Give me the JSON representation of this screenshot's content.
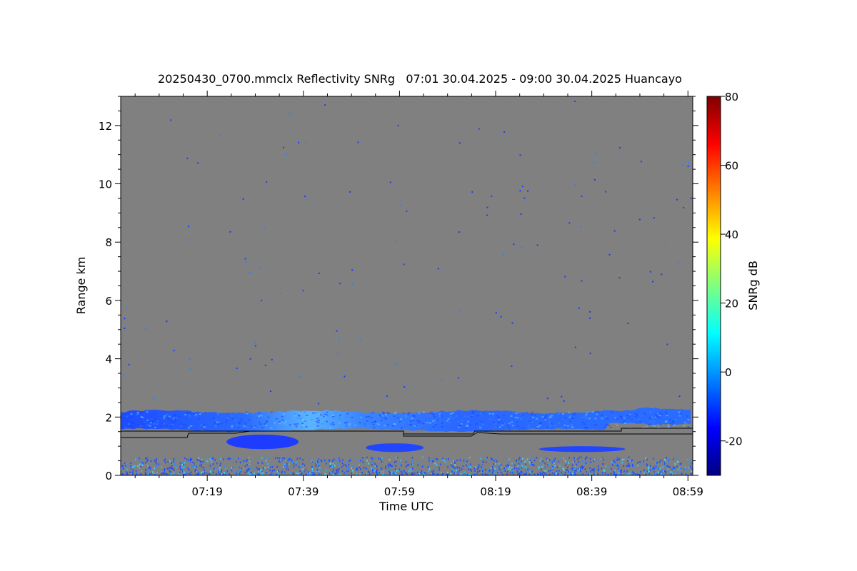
{
  "chart_data": {
    "type": "heatmap",
    "title": "20250430_0700.mmclx Reflectivity SNRg   07:01 30.04.2025 - 09:00 30.04.2025 Huancayo",
    "xlabel": "Time UTC",
    "ylabel": "Range km",
    "x_ticks": [
      "07:19",
      "07:39",
      "07:59",
      "08:19",
      "08:39",
      "08:59"
    ],
    "x_tick_minutes": [
      79,
      99,
      119,
      139,
      159,
      179
    ],
    "xlim_minutes": [
      61,
      180
    ],
    "y_ticks": [
      0,
      2,
      4,
      6,
      8,
      10,
      12
    ],
    "ylim": [
      0,
      13
    ],
    "colorbar": {
      "label": "SNRg dB",
      "ticks": [
        -20,
        0,
        20,
        40,
        60,
        80
      ],
      "range": [
        -30,
        80
      ],
      "colormap": "jet"
    },
    "background_color": "#808080",
    "cloud_layers": [
      {
        "name": "main_layer",
        "x_range_minutes": [
          61,
          180
        ],
        "range_km": [
          1.5,
          2.3
        ],
        "snr_db_range": [
          -15,
          5
        ]
      },
      {
        "name": "lower_patch_1",
        "x_range_minutes": [
          83,
          98
        ],
        "range_km": [
          0.9,
          1.4
        ],
        "snr_db_range": [
          -20,
          -10
        ]
      },
      {
        "name": "lower_patch_2",
        "x_range_minutes": [
          112,
          124
        ],
        "range_km": [
          0.8,
          1.1
        ],
        "snr_db_range": [
          -20,
          -10
        ]
      },
      {
        "name": "lower_patch_3",
        "x_range_minutes": [
          148,
          166
        ],
        "range_km": [
          0.8,
          1.0
        ],
        "snr_db_range": [
          -20,
          -12
        ]
      }
    ],
    "surface_clutter": {
      "range_km": [
        0,
        0.6
      ],
      "snr_db_range": [
        -10,
        10
      ]
    }
  }
}
